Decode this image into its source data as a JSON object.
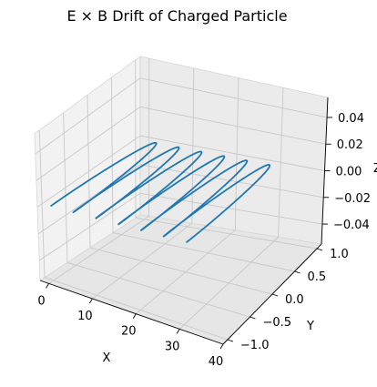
{
  "chart_data": {
    "type": "line",
    "projection": "3d",
    "title": "E × B Drift of Charged Particle",
    "xlabel": "X",
    "ylabel": "Y",
    "zlabel": "Z",
    "xlim": [
      -2,
      40
    ],
    "ylim": [
      -1.1,
      1.1
    ],
    "zlim": [
      -0.055,
      0.055
    ],
    "xticks": [
      "0",
      "10",
      "20",
      "30",
      "40"
    ],
    "yticks": [
      "−1.0",
      "−0.5",
      "0.0",
      "0.5",
      "1.0"
    ],
    "zticks": [
      "−0.04",
      "−0.02",
      "0.00",
      "0.02",
      "0.04"
    ],
    "grid": true,
    "series": [
      {
        "color": "#1f77b4",
        "z": 0,
        "trajectory": {
          "x_range": [
            0,
            31
          ],
          "y_range": [
            -1,
            1
          ],
          "loops": 6,
          "description_note": "cycloidal drift along +X, y oscillating between -1 and 1"
        }
      }
    ]
  }
}
